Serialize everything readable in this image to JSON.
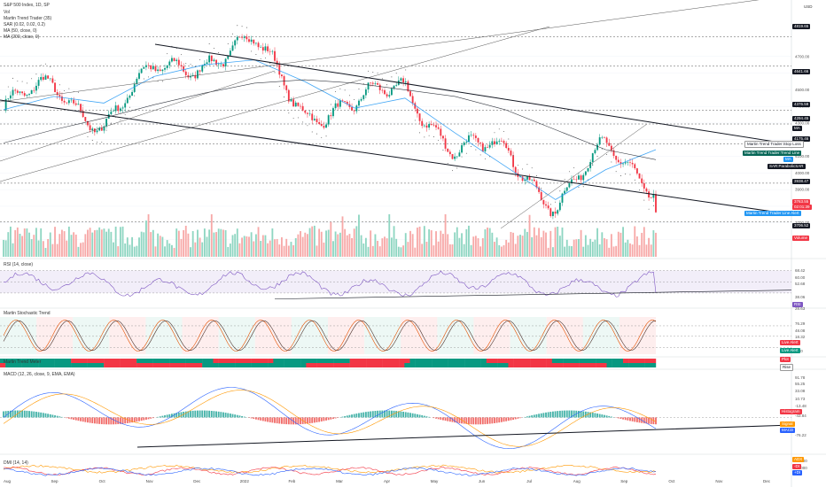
{
  "header": {
    "symbol": "S&P 500 Index, 1D, SP",
    "indicators": [
      "Vol",
      "Martin Trend Trader (35)",
      "SAR (0.02, 0.02, 0.2)",
      "MA (50, close, 0)",
      "MA (200, close, 0)"
    ]
  },
  "currency": "USD",
  "pane_titles": {
    "rsi": "RSI (14, close)",
    "stoch": "Martin Stochastic Trend",
    "mtm": "Martin Trend Meter",
    "macd": "MACD (12, 26, close, 9, EMA, EMA)",
    "dmi": "DMI (14, 14)"
  },
  "price_axis_ticks": [
    "4700.00",
    "4600.00",
    "4500.00",
    "4400.00",
    "4300.00",
    "4200.00",
    "4100.00",
    "4000.00",
    "3900.00",
    "3800.00",
    "3700.00",
    "3600.00"
  ],
  "price_tags": [
    {
      "label": "4819.65",
      "bg": "#131722"
    },
    {
      "label": "4641.66",
      "bg": "#131722"
    },
    {
      "label": "4376.59",
      "bg": "#131722"
    },
    {
      "label": "4294.45",
      "bg": "#131722"
    },
    {
      "label": "MA",
      "bg": "#131722"
    },
    {
      "label": "4175.46",
      "bg": "#131722"
    },
    {
      "label": "3938.47",
      "bg": "#131722"
    },
    {
      "label": "3763.55",
      "bg": "#f23645"
    },
    {
      "label": "02:01:39",
      "bg": "#f23645"
    },
    {
      "label": "3706.52",
      "bg": "#131722"
    },
    {
      "label": "Volume",
      "bg": "#f23645"
    }
  ],
  "line_tags": [
    {
      "label": "Martin Trend Trader:Stop Loss",
      "bg": "#ffffff",
      "fg": "#131722"
    },
    {
      "label": "Martin Trend Trader:Trend Line",
      "bg": "#056656",
      "fg": "#ffffff"
    },
    {
      "label": "MA",
      "bg": "#2196f3",
      "fg": "#ffffff"
    },
    {
      "label": "SAR:ParabolicSAR",
      "bg": "#131722",
      "fg": "#ffffff"
    },
    {
      "label": "Martin Trend Trader:Line Alert",
      "bg": "#2196f3",
      "fg": "#ffffff"
    }
  ],
  "rsi_ticks": [
    "68.42",
    "60.00",
    "52.68",
    "38.06",
    "RSI",
    "28.63"
  ],
  "stoch_ticks": [
    "76.29",
    "48.08",
    "18.32",
    "2.00"
  ],
  "stoch_tags": [
    {
      "label": "Live Alert",
      "bg": "#f23645"
    },
    {
      "label": "Live Alert",
      "bg": "#089981"
    },
    {
      "label": "Plot",
      "bg": "#f23645"
    },
    {
      "label": "Rise",
      "bg": "#ffffff"
    }
  ],
  "macd_ticks": [
    "91.78",
    "55.25",
    "33.08",
    "10.73",
    "-13.48",
    "-43.84",
    "-76.22"
  ],
  "macd_tags": [
    {
      "label": "Histogram",
      "bg": "#f23645"
    },
    {
      "label": "Signal",
      "bg": "#ff9800"
    },
    {
      "label": "MACD",
      "bg": "#2962ff"
    }
  ],
  "dmi_ticks": [
    "50.000",
    "25.000",
    "+DI"
  ],
  "dmi_tags": [
    {
      "label": "ADX",
      "bg": "#ff9800"
    },
    {
      "label": "-DI",
      "bg": "#f23645"
    },
    {
      "label": "+DI",
      "bg": "#2962ff"
    }
  ],
  "x_labels": [
    "Aug",
    "Sep",
    "Oct",
    "Nov",
    "Dec",
    "2022",
    "Feb",
    "Mar",
    "Apr",
    "May",
    "Jun",
    "Jul",
    "Aug",
    "Sep",
    "Oct",
    "Nov",
    "Dec"
  ],
  "chart_data": {
    "type": "line",
    "title": "S&P 500 Index, 1D, SP",
    "ylabel": "USD",
    "ylim": [
      3560,
      4880
    ],
    "last_price": 3763.55,
    "key_levels": [
      4819.65,
      4641.66,
      4376.59,
      4294.45,
      4175.46,
      3938.47,
      3706.52
    ],
    "x": [
      "2021-08",
      "2021-09",
      "2021-10",
      "2021-11",
      "2021-12",
      "2022-01",
      "2022-02",
      "2022-03",
      "2022-04",
      "2022-05",
      "2022-06",
      "2022-07",
      "2022-08",
      "2022-09",
      "2022-10",
      "2022-11",
      "2022-12"
    ],
    "series": [
      {
        "name": "MA (50, close, 0)",
        "values": [
          4380,
          4460,
          4420,
          4580,
          4650,
          4680,
          4550,
          4390,
          4450,
          4240,
          4040,
          3840,
          4020,
          4140,
          null,
          null,
          null
        ]
      },
      {
        "name": "MA (200, close, 0)",
        "values": [
          4180,
          4260,
          4330,
          4410,
          4480,
          4540,
          4560,
          4540,
          4500,
          4460,
          4380,
          4260,
          4140,
          4080,
          null,
          null,
          null
        ]
      }
    ],
    "closes_monthly": [
      4395,
      4510,
      4305,
      4600,
      4690,
      4770,
      4380,
      4390,
      4530,
      4130,
      4130,
      3820,
      4130,
      3930,
      null,
      null,
      null
    ],
    "rsi": {
      "name": "RSI (14, close)",
      "upper": 68.42,
      "lower": 28.63,
      "last": 38.06
    },
    "macd": {
      "name": "MACD (12, 26, close, 9, EMA, EMA)",
      "max": 91.78,
      "min": -76.22
    },
    "dmi": {
      "name": "DMI (14, 14)",
      "levels": [
        50,
        25
      ]
    }
  }
}
